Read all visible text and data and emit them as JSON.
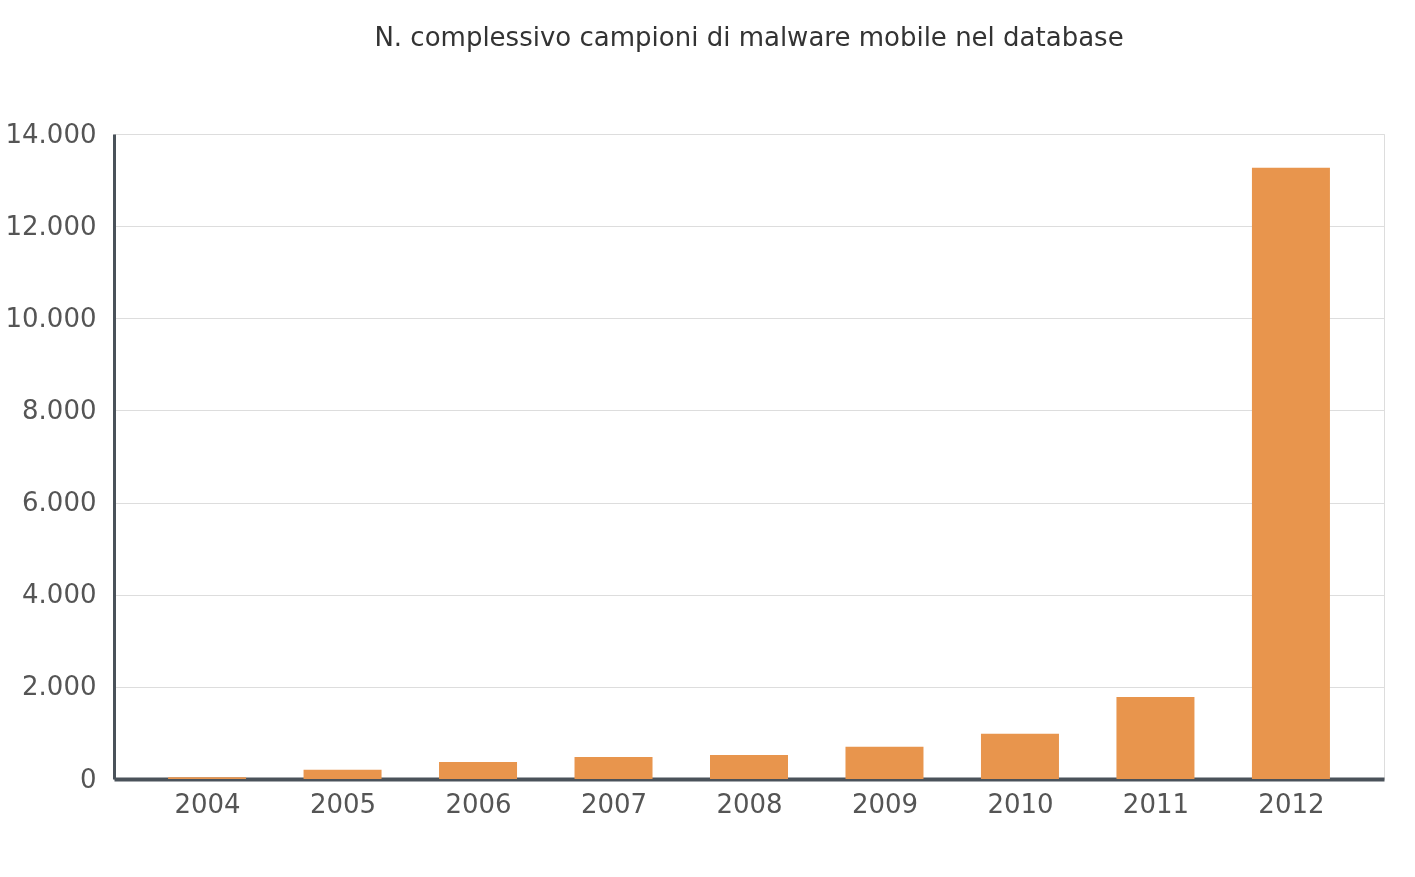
{
  "chart_data": {
    "type": "bar",
    "title": "N. complessivo campioni di malware mobile nel database",
    "categories": [
      "2004",
      "2005",
      "2006",
      "2007",
      "2008",
      "2009",
      "2010",
      "2011",
      "2012"
    ],
    "values": [
      40,
      200,
      370,
      480,
      520,
      700,
      980,
      1780,
      13270
    ],
    "color": "#e8954d",
    "ylim": [
      0,
      14000
    ],
    "yticks": [
      0,
      {
        "value": 2000,
        "label": "2.000"
      },
      {
        "value": 4000,
        "label": "4.000"
      },
      {
        "value": 6000,
        "label": "6.000"
      },
      {
        "value": 8000,
        "label": "8.000"
      },
      {
        "value": 10000,
        "label": "10.000"
      },
      {
        "value": 12000,
        "label": "12.000"
      },
      {
        "value": 14000,
        "label": "14.000"
      }
    ],
    "grid": "y"
  }
}
